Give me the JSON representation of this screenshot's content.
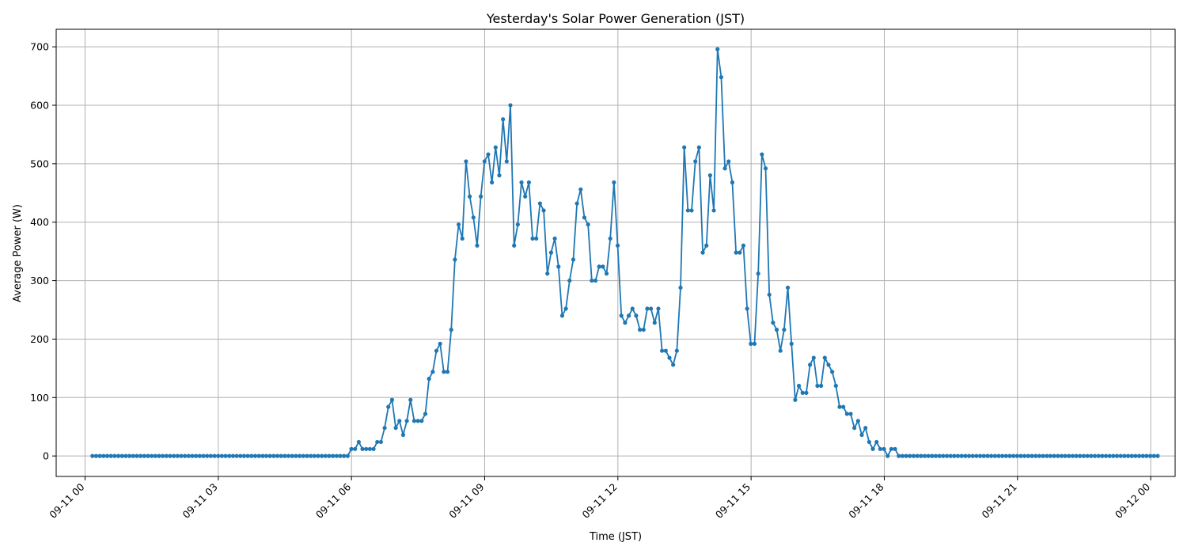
{
  "chart_data": {
    "type": "line",
    "title": "Yesterday's Solar Power Generation (JST)",
    "xlabel": "Time (JST)",
    "ylabel": "Average Power (W)",
    "xlim_hours": [
      -0.65,
      24.55
    ],
    "ylim": [
      -35,
      730
    ],
    "grid": true,
    "x_ticks": [
      {
        "hour": 0,
        "label": "09-11 00"
      },
      {
        "hour": 3,
        "label": "09-11 03"
      },
      {
        "hour": 6,
        "label": "09-11 06"
      },
      {
        "hour": 9,
        "label": "09-11 09"
      },
      {
        "hour": 12,
        "label": "09-11 12"
      },
      {
        "hour": 15,
        "label": "09-11 15"
      },
      {
        "hour": 18,
        "label": "09-11 18"
      },
      {
        "hour": 21,
        "label": "09-11 21"
      },
      {
        "hour": 24,
        "label": "09-12 00"
      }
    ],
    "y_ticks": [
      0,
      100,
      200,
      300,
      400,
      500,
      600,
      700
    ],
    "series": [
      {
        "color": "#1f77b4",
        "x_start_hour": 0.1667,
        "x_step_hours": 0.0833,
        "values": [
          0,
          0,
          0,
          0,
          0,
          0,
          0,
          0,
          0,
          0,
          0,
          0,
          0,
          0,
          0,
          0,
          0,
          0,
          0,
          0,
          0,
          0,
          0,
          0,
          0,
          0,
          0,
          0,
          0,
          0,
          0,
          0,
          0,
          0,
          0,
          0,
          0,
          0,
          0,
          0,
          0,
          0,
          0,
          0,
          0,
          0,
          0,
          0,
          0,
          0,
          0,
          0,
          0,
          0,
          0,
          0,
          0,
          0,
          0,
          0,
          0,
          0,
          0,
          0,
          0,
          0,
          0,
          0,
          0,
          0,
          12,
          12,
          24,
          12,
          12,
          12,
          12,
          24,
          24,
          48,
          84,
          96,
          48,
          60,
          36,
          60,
          96,
          60,
          60,
          60,
          72,
          132,
          144,
          180,
          192,
          144,
          144,
          216,
          336,
          396,
          372,
          504,
          444,
          408,
          360,
          444,
          504,
          516,
          468,
          528,
          480,
          576,
          504,
          600,
          360,
          396,
          468,
          444,
          468,
          372,
          372,
          432,
          420,
          312,
          348,
          372,
          324,
          240,
          252,
          300,
          336,
          432,
          456,
          408,
          396,
          300,
          300,
          324,
          324,
          312,
          372,
          468,
          360,
          240,
          228,
          240,
          252,
          240,
          216,
          216,
          252,
          252,
          228,
          252,
          180,
          180,
          168,
          156,
          180,
          288,
          528,
          420,
          420,
          504,
          528,
          348,
          360,
          480,
          420,
          696,
          648,
          492,
          504,
          468,
          348,
          348,
          360,
          252,
          192,
          192,
          312,
          516,
          492,
          276,
          228,
          216,
          180,
          216,
          288,
          192,
          96,
          120,
          108,
          108,
          156,
          168,
          120,
          120,
          168,
          156,
          144,
          120,
          84,
          84,
          72,
          72,
          48,
          60,
          36,
          48,
          24,
          12,
          24,
          12,
          12,
          0,
          12,
          12,
          0,
          0,
          0,
          0,
          0,
          0,
          0,
          0,
          0,
          0,
          0,
          0,
          0,
          0,
          0,
          0,
          0,
          0,
          0,
          0,
          0,
          0,
          0,
          0,
          0,
          0,
          0,
          0,
          0,
          0,
          0,
          0,
          0,
          0,
          0,
          0,
          0,
          0,
          0,
          0,
          0,
          0,
          0,
          0,
          0,
          0,
          0,
          0,
          0,
          0,
          0,
          0,
          0,
          0,
          0,
          0,
          0,
          0,
          0,
          0,
          0,
          0,
          0,
          0,
          0,
          0,
          0,
          0,
          0,
          0,
          0
        ]
      }
    ]
  }
}
